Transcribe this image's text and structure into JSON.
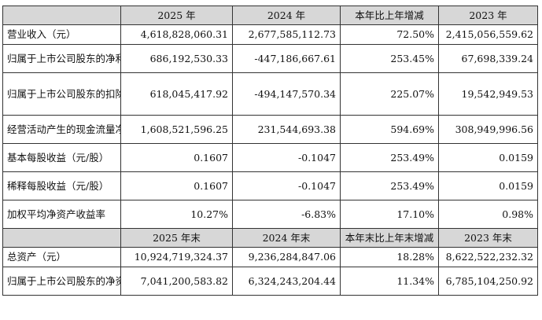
{
  "headers_year": [
    "2025 年",
    "2024 年",
    "本年比上年增减",
    "2023 年"
  ],
  "rows_year": [
    {
      "label": "营业收入（元）",
      "v": [
        "4,618,828,060.31",
        "2,677,585,112.73",
        "72.50%",
        "2,415,056,559.62"
      ]
    },
    {
      "label": "归属于上市公司股东的净利润（元）",
      "v": [
        "686,192,530.33",
        "-447,186,667.61",
        "253.45%",
        "67,698,339.24"
      ]
    },
    {
      "label": "归属于上市公司股东的扣除非经常性损益的净利润（元）",
      "v": [
        "618,045,417.92",
        "-494,147,570.34",
        "225.07%",
        "19,542,949.53"
      ]
    },
    {
      "label": "经营活动产生的现金流量净额（元）",
      "v": [
        "1,608,521,596.25",
        "231,544,693.38",
        "594.69%",
        "308,949,996.56"
      ]
    },
    {
      "label": "基本每股收益（元/股）",
      "v": [
        "0.1607",
        "-0.1047",
        "253.49%",
        "0.0159"
      ]
    },
    {
      "label": "稀释每股收益（元/股）",
      "v": [
        "0.1607",
        "-0.1047",
        "253.49%",
        "0.0159"
      ]
    },
    {
      "label": "加权平均净资产收益率",
      "v": [
        "10.27%",
        "-6.83%",
        "17.10%",
        "0.98%"
      ]
    }
  ],
  "headers_yearend": [
    "2025 年末",
    "2024 年末",
    "本年末比上年末增减",
    "2023 年末"
  ],
  "rows_yearend": [
    {
      "label": "总资产（元）",
      "v": [
        "10,924,719,324.37",
        "9,236,284,847.06",
        "18.28%",
        "8,622,522,232.32"
      ]
    },
    {
      "label": "归属于上市公司股东的净资产（元）",
      "v": [
        "7,041,200,583.82",
        "6,324,243,204.44",
        "11.34%",
        "6,785,104,250.92"
      ]
    }
  ]
}
